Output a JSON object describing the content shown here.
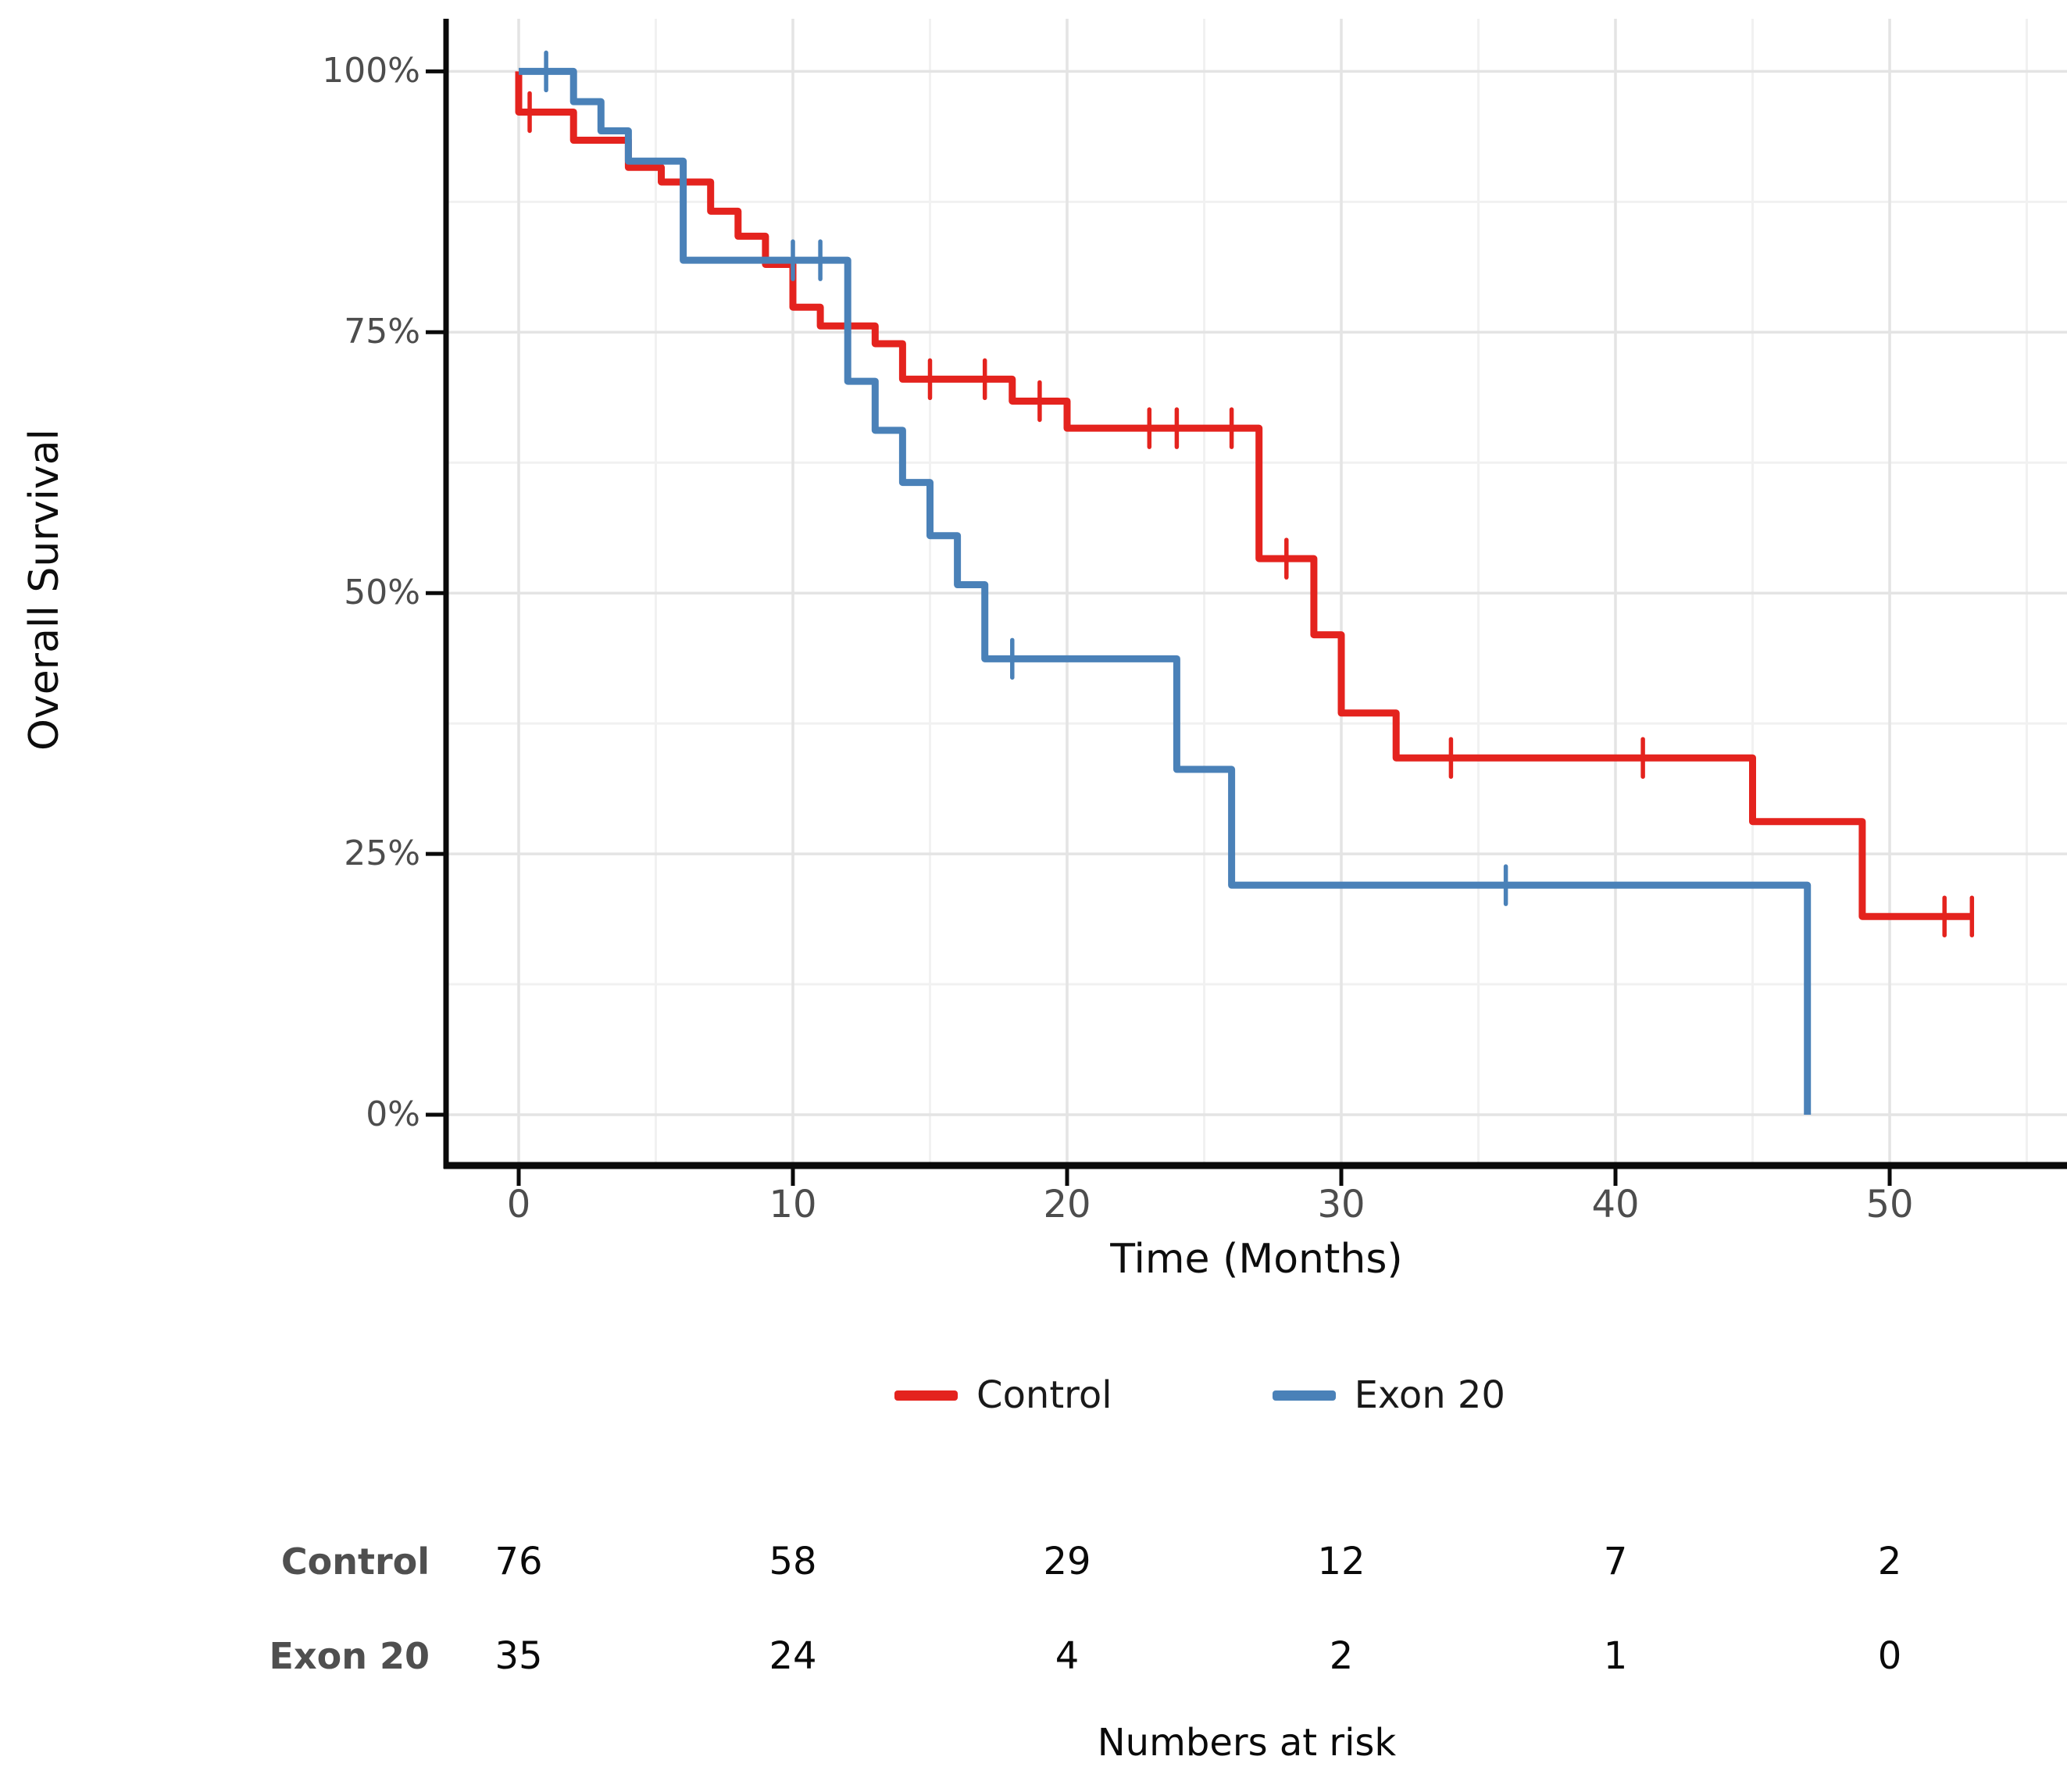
{
  "page": {
    "background": "#ffffff"
  },
  "chart_data": {
    "type": "line",
    "subtype": "kaplan-meier-step",
    "title": "",
    "xlabel": "Time (Months)",
    "ylabel": "Overall Survival",
    "xlim": [
      0,
      53
    ],
    "ylim": [
      0,
      100
    ],
    "grid": "on",
    "legend_position": "bottom-center",
    "x_ticks": [
      {
        "t": 0,
        "label": "0"
      },
      {
        "t": 10,
        "label": "10"
      },
      {
        "t": 20,
        "label": "20"
      },
      {
        "t": 30,
        "label": "30"
      },
      {
        "t": 40,
        "label": "40"
      },
      {
        "t": 50,
        "label": "50"
      }
    ],
    "y_ticks": [
      {
        "p": 0,
        "label": "0%"
      },
      {
        "p": 25,
        "label": "25%"
      },
      {
        "p": 50,
        "label": "50%"
      },
      {
        "p": 75,
        "label": "75%"
      },
      {
        "p": 100,
        "label": "100%"
      }
    ],
    "x_minor": [
      5,
      15,
      25,
      35,
      45,
      55
    ],
    "y_minor": [
      12.5,
      37.5,
      62.5,
      87.5
    ],
    "colors": {
      "axis": "#0a0a0a",
      "grid_major": "#e4e4e4",
      "grid_minor": "#f1f1f1",
      "tick_text": "#4d4d4d"
    },
    "series": [
      {
        "name": "Control",
        "color": "#e4231e",
        "start": [
          0,
          100
        ],
        "steps": [
          [
            0,
            96.1
          ],
          [
            2,
            93.4
          ],
          [
            4,
            90.8
          ],
          [
            5.2,
            89.4
          ],
          [
            7,
            86.6
          ],
          [
            8,
            84.2
          ],
          [
            9,
            81.5
          ],
          [
            10,
            77.4
          ],
          [
            11,
            75.6
          ],
          [
            13,
            73.9
          ],
          [
            14,
            70.5
          ],
          [
            18,
            68.4
          ],
          [
            20,
            65.8
          ],
          [
            27,
            53.3
          ],
          [
            29,
            46.0
          ],
          [
            30,
            38.5
          ],
          [
            32,
            34.2
          ],
          [
            45,
            28.1
          ],
          [
            49,
            19.0
          ]
        ],
        "end_t": 53,
        "censors": [
          [
            0.4,
            96.1
          ],
          [
            12,
            75.6
          ],
          [
            15,
            70.5
          ],
          [
            17,
            70.5
          ],
          [
            19,
            68.4
          ],
          [
            23,
            65.8
          ],
          [
            24,
            65.8
          ],
          [
            26,
            65.8
          ],
          [
            28,
            53.3
          ],
          [
            34,
            34.2
          ],
          [
            41,
            34.2
          ],
          [
            52,
            19.0
          ],
          [
            53,
            19.0
          ]
        ]
      },
      {
        "name": "Exon 20",
        "color": "#4a81b8",
        "start": [
          0,
          100
        ],
        "steps": [
          [
            2,
            97.1
          ],
          [
            3,
            94.3
          ],
          [
            4,
            91.4
          ],
          [
            6,
            81.9
          ],
          [
            12,
            70.3
          ],
          [
            13,
            65.6
          ],
          [
            14,
            60.6
          ],
          [
            15,
            55.5
          ],
          [
            16,
            50.8
          ],
          [
            17,
            43.7
          ],
          [
            24,
            33.1
          ],
          [
            26,
            22.0
          ],
          [
            47,
            0
          ]
        ],
        "end_t": 47,
        "censors": [
          [
            1,
            100
          ],
          [
            10,
            81.9
          ],
          [
            11,
            81.9
          ],
          [
            18,
            43.7
          ],
          [
            36,
            22.0
          ]
        ]
      }
    ],
    "legend": [
      {
        "label": "Control",
        "color": "#e4231e"
      },
      {
        "label": "Exon 20",
        "color": "#4a81b8"
      }
    ],
    "risk_table": {
      "caption": "Numbers at risk",
      "times": [
        0,
        10,
        20,
        30,
        40,
        50
      ],
      "rows": [
        {
          "name": "Control",
          "values": [
            "76",
            "58",
            "29",
            "12",
            "7",
            "2"
          ]
        },
        {
          "name": "Exon 20",
          "values": [
            "35",
            "24",
            "4",
            "2",
            "1",
            "0"
          ]
        }
      ]
    }
  }
}
